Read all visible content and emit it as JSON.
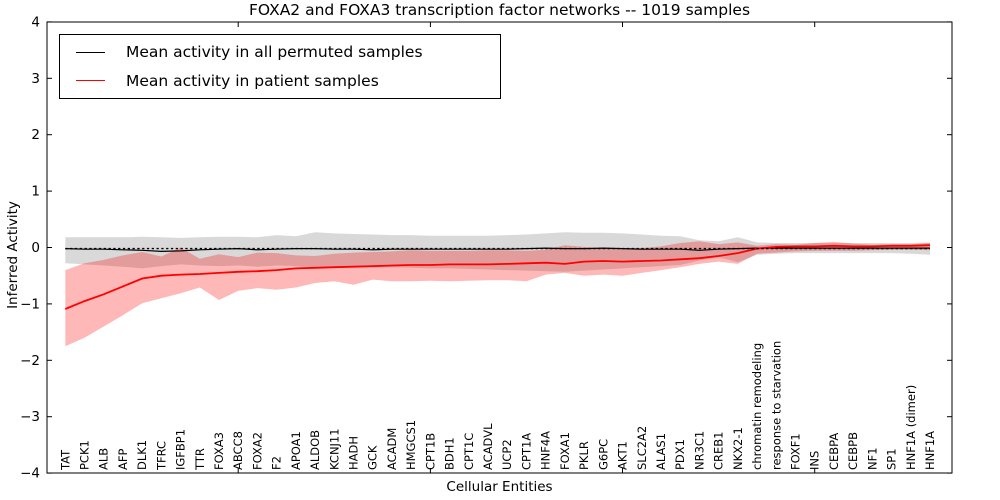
{
  "figure": {
    "title": "FOXA2 and FOXA3 transcription factor networks -- 1019 samples",
    "xlabel": "Cellular Entities",
    "ylabel": "Inferred Activity",
    "background": "#ffffff"
  },
  "legend": {
    "items": [
      {
        "label": "Mean activity in all permuted samples",
        "color": "#000000"
      },
      {
        "label": "Mean activity in patient samples",
        "color": "#ff0000"
      }
    ]
  },
  "chart_data": {
    "type": "line",
    "title": "FOXA2 and FOXA3 transcription factor networks -- 1019 samples",
    "xlabel": "Cellular Entities",
    "ylabel": "Inferred Activity",
    "ylim": [
      -4,
      4
    ],
    "grid": false,
    "legend_position": "upper left",
    "ytick_values": [
      4,
      3,
      2,
      1,
      0,
      -1,
      -2,
      -3,
      -4
    ],
    "ytick_labels": [
      "4",
      "3",
      "2",
      "1",
      "0",
      "−1",
      "−2",
      "−3",
      "−4"
    ],
    "xtick_major_indices": [
      9,
      19,
      29,
      39
    ],
    "categories": [
      "TAT",
      "PCK1",
      "ALB",
      "AFP",
      "DLK1",
      "TFRC",
      "IGFBP1",
      "TTR",
      "FOXA3",
      "ABCC8",
      "FOXA2",
      "F2",
      "APOA1",
      "ALDOB",
      "KCNJ11",
      "HADH",
      "GCK",
      "ACADM",
      "HMGCS1",
      "CPT1B",
      "BDH1",
      "CPT1C",
      "ACADVL",
      "UCP2",
      "CPT1A",
      "HNF4A",
      "FOXA1",
      "PKLR",
      "G6PC",
      "AKT1",
      "SLC2A2",
      "ALAS1",
      "PDX1",
      "NR3C1",
      "CREB1",
      "NKX2-1",
      "chromatin remodeling",
      "response to starvation",
      "FOXF1",
      "INS",
      "CEBPA",
      "CEBPB",
      "NF1",
      "SP1",
      "HNF1A (dimer)",
      "HNF1A"
    ],
    "series": [
      {
        "name": "Mean activity in all permuted samples",
        "color": "#000000",
        "style": "solid",
        "width": 1.2,
        "values": [
          -0.02,
          -0.03,
          -0.03,
          -0.04,
          -0.05,
          -0.07,
          -0.06,
          -0.04,
          -0.03,
          -0.02,
          -0.04,
          -0.03,
          -0.02,
          -0.02,
          -0.03,
          -0.03,
          -0.04,
          -0.03,
          -0.03,
          -0.03,
          -0.03,
          -0.03,
          -0.03,
          -0.03,
          -0.02,
          -0.01,
          -0.02,
          -0.02,
          -0.01,
          -0.02,
          -0.03,
          -0.03,
          -0.03,
          -0.05,
          -0.03,
          -0.02,
          -0.01,
          -0.01,
          -0.01,
          -0.01,
          -0.01,
          -0.01,
          -0.01,
          -0.01,
          -0.01,
          -0.01
        ]
      },
      {
        "name": "Mean activity in patient samples",
        "color": "#ff0000",
        "style": "solid",
        "width": 1.8,
        "values": [
          -1.09,
          -0.95,
          -0.83,
          -0.69,
          -0.55,
          -0.5,
          -0.48,
          -0.47,
          -0.45,
          -0.43,
          -0.42,
          -0.4,
          -0.37,
          -0.36,
          -0.35,
          -0.34,
          -0.33,
          -0.32,
          -0.31,
          -0.31,
          -0.3,
          -0.3,
          -0.3,
          -0.29,
          -0.28,
          -0.27,
          -0.29,
          -0.25,
          -0.24,
          -0.25,
          -0.24,
          -0.23,
          -0.21,
          -0.19,
          -0.15,
          -0.1,
          -0.02,
          0.01,
          0.02,
          0.02,
          0.03,
          0.02,
          0.02,
          0.03,
          0.03,
          0.04
        ]
      },
      {
        "name": "zero reference (dotted)",
        "color": "#000000",
        "style": "dotted",
        "width": 1.4,
        "constant": -0.02
      }
    ],
    "bands": [
      {
        "name": "permuted samples range",
        "fill": "rgba(0,0,0,0.15)",
        "upper": [
          0.18,
          0.18,
          0.18,
          0.18,
          0.19,
          0.18,
          0.17,
          0.18,
          0.19,
          0.19,
          0.18,
          0.22,
          0.2,
          0.27,
          0.25,
          0.24,
          0.23,
          0.22,
          0.22,
          0.21,
          0.21,
          0.21,
          0.21,
          0.22,
          0.23,
          0.25,
          0.27,
          0.26,
          0.26,
          0.25,
          0.23,
          0.21,
          0.2,
          0.13,
          0.11,
          0.18,
          0.09,
          0.08,
          0.08,
          0.08,
          0.08,
          0.08,
          0.08,
          0.08,
          0.08,
          0.09
        ],
        "lower": [
          -0.28,
          -0.3,
          -0.32,
          -0.34,
          -0.37,
          -0.33,
          -0.3,
          -0.32,
          -0.33,
          -0.32,
          -0.34,
          -0.32,
          -0.33,
          -0.35,
          -0.36,
          -0.34,
          -0.36,
          -0.35,
          -0.36,
          -0.37,
          -0.37,
          -0.38,
          -0.39,
          -0.4,
          -0.41,
          -0.42,
          -0.43,
          -0.41,
          -0.39,
          -0.37,
          -0.35,
          -0.33,
          -0.31,
          -0.23,
          -0.17,
          -0.26,
          -0.13,
          -0.11,
          -0.1,
          -0.1,
          -0.1,
          -0.1,
          -0.1,
          -0.1,
          -0.11,
          -0.13
        ]
      },
      {
        "name": "patient samples range",
        "fill": "rgba(255,0,0,0.28)",
        "upper": [
          -0.4,
          -0.28,
          -0.22,
          -0.14,
          -0.08,
          -0.16,
          0.0,
          -0.2,
          -0.12,
          -0.17,
          -0.09,
          -0.1,
          -0.14,
          -0.15,
          -0.11,
          -0.09,
          -0.08,
          -0.07,
          -0.05,
          -0.06,
          -0.06,
          -0.06,
          -0.05,
          -0.05,
          -0.06,
          -0.04,
          0.04,
          0.01,
          -0.02,
          -0.03,
          -0.01,
          0.02,
          0.08,
          0.11,
          0.06,
          0.09,
          0.03,
          0.06,
          0.05,
          0.08,
          0.1,
          0.07,
          0.05,
          0.06,
          0.06,
          0.08
        ],
        "lower": [
          -1.75,
          -1.6,
          -1.4,
          -1.2,
          -0.99,
          -0.9,
          -0.81,
          -0.71,
          -0.93,
          -0.77,
          -0.72,
          -0.75,
          -0.71,
          -0.63,
          -0.6,
          -0.66,
          -0.57,
          -0.6,
          -0.6,
          -0.59,
          -0.6,
          -0.59,
          -0.58,
          -0.58,
          -0.6,
          -0.48,
          -0.45,
          -0.5,
          -0.48,
          -0.5,
          -0.45,
          -0.4,
          -0.35,
          -0.29,
          -0.25,
          -0.29,
          -0.11,
          -0.09,
          -0.07,
          -0.06,
          -0.06,
          -0.06,
          -0.05,
          -0.04,
          -0.04,
          -0.05
        ]
      }
    ]
  }
}
